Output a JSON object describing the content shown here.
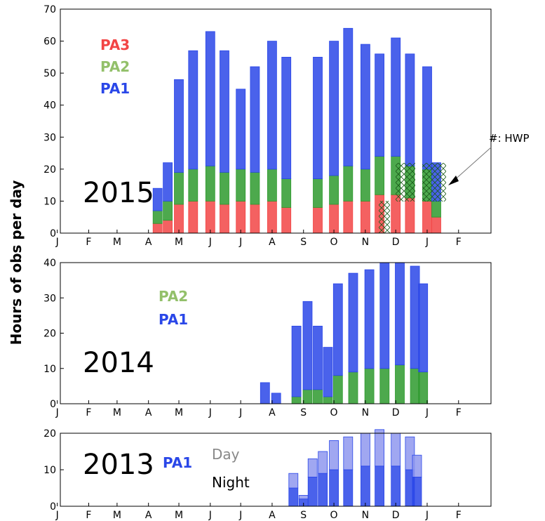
{
  "figure": {
    "ylabel": "Hours of obs per day",
    "annotation": "#: HWP"
  },
  "colors": {
    "PA1": "#2a47e8",
    "PA2": "#2e9a2e",
    "PA3": "#f24545",
    "PA1_light": "#8f98ef",
    "PA2_light": "#93c893",
    "PA3_light": "#f49a9a",
    "PA2_legend": "#93c06a",
    "day_label": "#888888",
    "night_label": "#000000"
  },
  "chart_data": [
    {
      "type": "area",
      "year_label": "2015",
      "ylim": [
        0,
        70
      ],
      "yticks": [
        "0",
        "10",
        "20",
        "30",
        "40",
        "50",
        "60",
        "70"
      ],
      "xticks": [
        "J",
        "F",
        "M",
        "A",
        "M",
        "J",
        "J",
        "A",
        "S",
        "O",
        "N",
        "D",
        "J",
        "F"
      ],
      "legend": [
        "PA3",
        "PA2",
        "PA1"
      ],
      "x": [
        "Apr 10",
        "Apr 20",
        "May 1",
        "May 15",
        "Jun 1",
        "Jun 15",
        "Jul 1",
        "Jul 15",
        "Aug 1",
        "Aug 15",
        "Sep 15",
        "Oct 1",
        "Oct 15",
        "Nov 1",
        "Nov 15",
        "Dec 1",
        "Dec 15",
        "Jan 1",
        "Jan 10"
      ],
      "series": [
        {
          "name": "PA3",
          "values": [
            3,
            4,
            9,
            10,
            10,
            9,
            10,
            9,
            10,
            8,
            8,
            9,
            10,
            10,
            12,
            12,
            11,
            10,
            5
          ]
        },
        {
          "name": "PA2",
          "values": [
            4,
            6,
            10,
            10,
            11,
            10,
            10,
            10,
            10,
            9,
            9,
            9,
            11,
            10,
            12,
            12,
            10,
            10,
            5
          ]
        },
        {
          "name": "PA1",
          "values": [
            7,
            12,
            29,
            37,
            42,
            38,
            25,
            33,
            40,
            38,
            38,
            42,
            43,
            39,
            32,
            37,
            35,
            32,
            12
          ]
        }
      ]
    },
    {
      "type": "area",
      "year_label": "2014",
      "ylim": [
        0,
        40
      ],
      "yticks": [
        "0",
        "10",
        "20",
        "30",
        "40"
      ],
      "xticks": [
        "J",
        "F",
        "M",
        "A",
        "M",
        "J",
        "J",
        "A",
        "S",
        "O",
        "N",
        "D",
        "J",
        "F"
      ],
      "legend": [
        "PA2",
        "PA1"
      ],
      "x": [
        "Jul 25",
        "Aug 5",
        "Aug 25",
        "Sep 5",
        "Sep 15",
        "Sep 25",
        "Oct 5",
        "Oct 20",
        "Nov 5",
        "Nov 20",
        "Dec 5",
        "Dec 20",
        "Dec 28"
      ],
      "series": [
        {
          "name": "PA2",
          "values": [
            0,
            0,
            2,
            4,
            4,
            2,
            8,
            9,
            10,
            10,
            11,
            10,
            9
          ]
        },
        {
          "name": "PA1",
          "values": [
            6,
            3,
            20,
            25,
            18,
            14,
            26,
            28,
            28,
            30,
            29,
            29,
            25
          ]
        }
      ]
    },
    {
      "type": "area",
      "year_label": "2013",
      "ylim": [
        0,
        20
      ],
      "yticks": [
        "0",
        "10",
        "20"
      ],
      "xticks": [
        "J",
        "F",
        "M",
        "A",
        "M",
        "J",
        "J",
        "A",
        "S",
        "O",
        "N",
        "D",
        "J",
        "F"
      ],
      "legend": [
        "PA1",
        "Day",
        "Night"
      ],
      "x": [
        "Aug 22",
        "Sep 1",
        "Sep 10",
        "Sep 20",
        "Oct 1",
        "Oct 15",
        "Nov 1",
        "Nov 15",
        "Dec 1",
        "Dec 15",
        "Dec 22"
      ],
      "series": [
        {
          "name": "Night",
          "values": [
            5,
            2,
            8,
            9,
            10,
            10,
            11,
            11,
            11,
            10,
            8
          ]
        },
        {
          "name": "Day",
          "values": [
            4,
            1,
            5,
            6,
            8,
            9,
            9,
            10,
            9,
            9,
            6
          ]
        }
      ]
    }
  ]
}
